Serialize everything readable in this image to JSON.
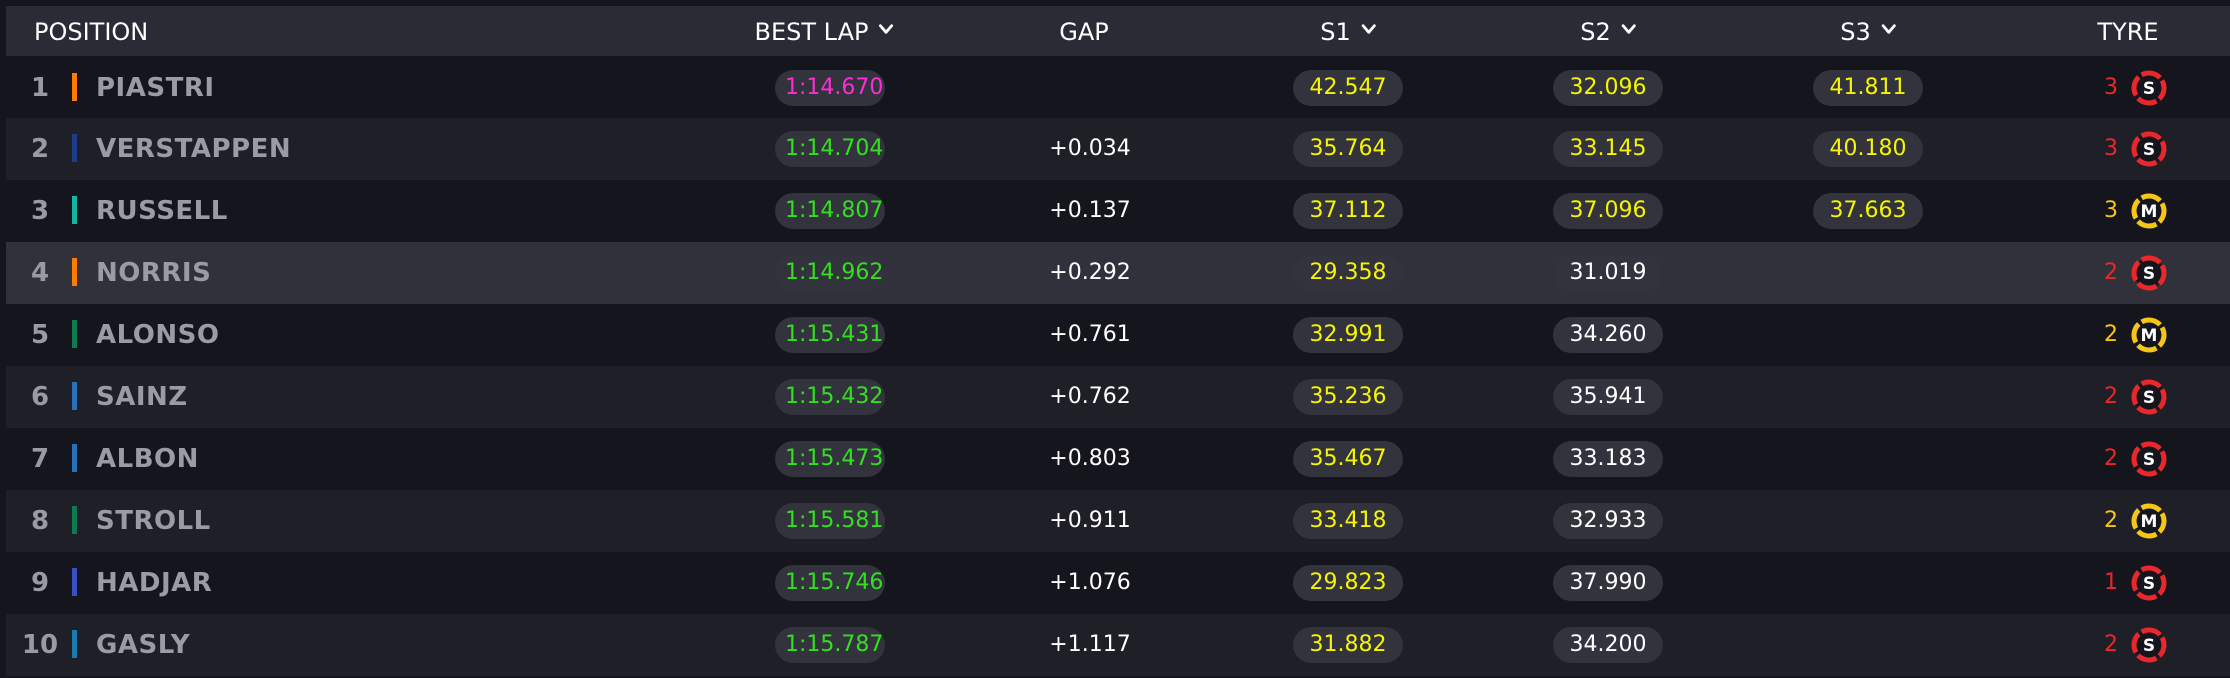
{
  "header": {
    "position": "POSITION",
    "best_lap": "BEST LAP",
    "gap": "GAP",
    "s1": "S1",
    "s2": "S2",
    "s3": "S3",
    "tyre": "TYRE"
  },
  "colors": {
    "purple": "#ff2bd6",
    "green": "#32e020",
    "yellow": "#f6f500",
    "white": "#ffffff",
    "soft": "#e8282b",
    "medium": "#f5c518"
  },
  "rows": [
    {
      "pos": "1",
      "name": "PIASTRI",
      "team_color": "#ff7a00",
      "best_lap": "1:14.670",
      "best_lap_color": "purple",
      "gap": "",
      "s1": "42.547",
      "s1_color": "yellow",
      "s2": "32.096",
      "s2_color": "yellow",
      "s3": "41.811",
      "s3_color": "yellow",
      "tyre_count": "3",
      "tyre": "S",
      "tyre_icon": "soft-tyre-icon"
    },
    {
      "pos": "2",
      "name": "VERSTAPPEN",
      "team_color": "#1e3d8f",
      "best_lap": "1:14.704",
      "best_lap_color": "green",
      "gap": "+0.034",
      "s1": "35.764",
      "s1_color": "yellow",
      "s2": "33.145",
      "s2_color": "yellow",
      "s3": "40.180",
      "s3_color": "yellow",
      "tyre_count": "3",
      "tyre": "S",
      "tyre_icon": "soft-tyre-icon"
    },
    {
      "pos": "3",
      "name": "RUSSELL",
      "team_color": "#13b6a0",
      "best_lap": "1:14.807",
      "best_lap_color": "green",
      "gap": "+0.137",
      "s1": "37.112",
      "s1_color": "yellow",
      "s2": "37.096",
      "s2_color": "yellow",
      "s3": "37.663",
      "s3_color": "yellow",
      "tyre_count": "3",
      "tyre": "M",
      "tyre_icon": "medium-tyre-icon"
    },
    {
      "pos": "4",
      "name": "NORRIS",
      "team_color": "#ff7a00",
      "best_lap": "1:14.962",
      "best_lap_color": "green",
      "gap": "+0.292",
      "s1": "29.358",
      "s1_color": "yellow",
      "s2": "31.019",
      "s2_color": "white",
      "s3": "",
      "s3_color": "white",
      "tyre_count": "2",
      "tyre": "S",
      "tyre_icon": "soft-tyre-icon"
    },
    {
      "pos": "5",
      "name": "ALONSO",
      "team_color": "#0d7a4f",
      "best_lap": "1:15.431",
      "best_lap_color": "green",
      "gap": "+0.761",
      "s1": "32.991",
      "s1_color": "yellow",
      "s2": "34.260",
      "s2_color": "white",
      "s3": "",
      "s3_color": "white",
      "tyre_count": "2",
      "tyre": "M",
      "tyre_icon": "medium-tyre-icon"
    },
    {
      "pos": "6",
      "name": "SAINZ",
      "team_color": "#2a70b8",
      "best_lap": "1:15.432",
      "best_lap_color": "green",
      "gap": "+0.762",
      "s1": "35.236",
      "s1_color": "yellow",
      "s2": "35.941",
      "s2_color": "white",
      "s3": "",
      "s3_color": "white",
      "tyre_count": "2",
      "tyre": "S",
      "tyre_icon": "soft-tyre-icon"
    },
    {
      "pos": "7",
      "name": "ALBON",
      "team_color": "#2a70b8",
      "best_lap": "1:15.473",
      "best_lap_color": "green",
      "gap": "+0.803",
      "s1": "35.467",
      "s1_color": "yellow",
      "s2": "33.183",
      "s2_color": "white",
      "s3": "",
      "s3_color": "white",
      "tyre_count": "2",
      "tyre": "S",
      "tyre_icon": "soft-tyre-icon"
    },
    {
      "pos": "8",
      "name": "STROLL",
      "team_color": "#0d7a4f",
      "best_lap": "1:15.581",
      "best_lap_color": "green",
      "gap": "+0.911",
      "s1": "33.418",
      "s1_color": "yellow",
      "s2": "32.933",
      "s2_color": "white",
      "s3": "",
      "s3_color": "white",
      "tyre_count": "2",
      "tyre": "M",
      "tyre_icon": "medium-tyre-icon"
    },
    {
      "pos": "9",
      "name": "HADJAR",
      "team_color": "#3a4fc4",
      "best_lap": "1:15.746",
      "best_lap_color": "green",
      "gap": "+1.076",
      "s1": "29.823",
      "s1_color": "yellow",
      "s2": "37.990",
      "s2_color": "white",
      "s3": "",
      "s3_color": "white",
      "tyre_count": "1",
      "tyre": "S",
      "tyre_icon": "soft-tyre-icon"
    },
    {
      "pos": "10",
      "name": "GASLY",
      "team_color": "#1a7ab0",
      "best_lap": "1:15.787",
      "best_lap_color": "green",
      "gap": "+1.117",
      "s1": "31.882",
      "s1_color": "yellow",
      "s2": "34.200",
      "s2_color": "white",
      "s3": "",
      "s3_color": "white",
      "tyre_count": "2",
      "tyre": "S",
      "tyre_icon": "soft-tyre-icon"
    }
  ]
}
